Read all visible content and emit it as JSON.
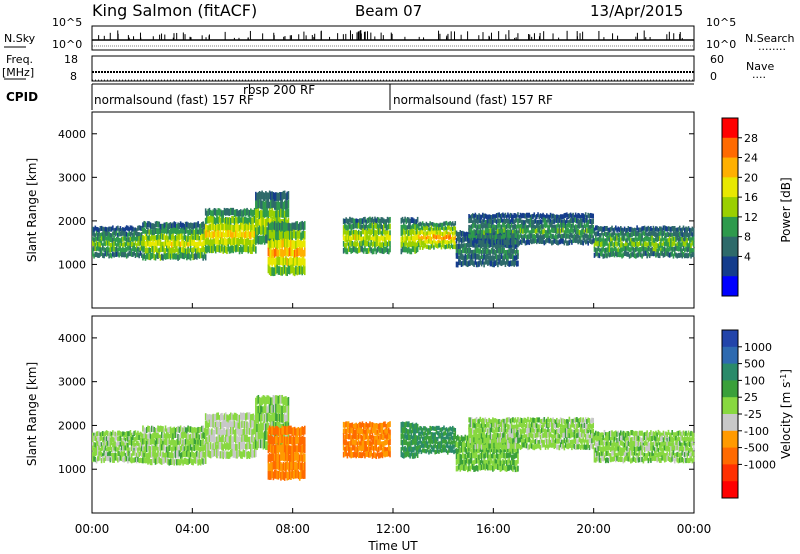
{
  "header": {
    "station": "King Salmon (fitACF)",
    "beam": "Beam 07",
    "date": "13/Apr/2015"
  },
  "noise_panel": {
    "left_label": "N.Sky",
    "right_label": "N.Search",
    "right_dots": "........",
    "left_ticks": [
      "10^5",
      "10^0"
    ],
    "right_ticks": [
      "10^5",
      "10^0"
    ]
  },
  "freq_panel": {
    "left_label_1": "Freq.",
    "left_label_2": "[MHz]",
    "left_ticks": [
      "18",
      "8"
    ],
    "right_ticks": [
      "60",
      "0"
    ],
    "right_label": "Nave",
    "right_dots": "....",
    "nave_value": 0
  },
  "cpid": {
    "label": "CPID",
    "segments": [
      {
        "name": "normalsound (fast) 157 RF",
        "start_hour": 0,
        "end_hour": 12
      },
      {
        "name": "rbsp 200 RF",
        "start_hour": 5.7,
        "end_hour": 6.0
      },
      {
        "name": "normalsound (fast) 157 RF",
        "start_hour": 12,
        "end_hour": 24
      }
    ]
  },
  "colorbars": {
    "power": {
      "label": "Power [dB]",
      "ticks": [
        "28",
        "24",
        "20",
        "16",
        "12",
        "8",
        "4"
      ],
      "colors": [
        "#ff0000",
        "#ff6a00",
        "#ffb000",
        "#e8e800",
        "#9ad000",
        "#2e9a4c",
        "#2e6a6a",
        "#143c8c",
        "#0000ff"
      ]
    },
    "velocity": {
      "label": "Velocity [m s",
      "label_sup": "-1",
      "label_end": "]",
      "ticks": [
        "1000",
        "500",
        "100",
        "25",
        "-25",
        "-100",
        "-500",
        "-1000"
      ],
      "colors": [
        "#2244aa",
        "#2e6ab0",
        "#2a8a6a",
        "#3aa03a",
        "#88d840",
        "#c8c8c8",
        "#ff9a00",
        "#ff6a00",
        "#ff3000",
        "#ff0000"
      ]
    }
  },
  "chart_data": {
    "type": "heatmap",
    "panels": [
      {
        "name": "power",
        "ylabel": "Slant Range [km]",
        "ylim": [
          0,
          4500
        ],
        "yticks": [
          1000,
          2000,
          3000,
          4000
        ]
      },
      {
        "name": "velocity",
        "ylabel": "Slant Range [km]",
        "ylim": [
          0,
          4500
        ],
        "yticks": [
          1000,
          2000,
          3000,
          4000
        ]
      }
    ],
    "xlabel": "Time UT",
    "xlim": [
      0,
      24
    ],
    "xticks": [
      "00:00",
      "04:00",
      "08:00",
      "12:00",
      "16:00",
      "20:00",
      "00:00"
    ],
    "echo_bands": [
      {
        "t_start": 0.0,
        "t_end": 2.0,
        "r_low": 1200,
        "r_high": 1900,
        "power_db": 12,
        "velocity": 0
      },
      {
        "t_start": 2.0,
        "t_end": 4.5,
        "r_low": 1150,
        "r_high": 2000,
        "power_db": 16,
        "velocity": 0
      },
      {
        "t_start": 4.5,
        "t_end": 6.5,
        "r_low": 1300,
        "r_high": 2300,
        "power_db": 18,
        "velocity": -25
      },
      {
        "t_start": 6.5,
        "t_end": 7.8,
        "r_low": 1500,
        "r_high": 2700,
        "power_db": 14,
        "velocity": 0
      },
      {
        "t_start": 7.0,
        "t_end": 8.5,
        "r_low": 800,
        "r_high": 2000,
        "power_db": 20,
        "velocity": -500
      },
      {
        "t_start": 10.0,
        "t_end": 11.9,
        "r_low": 1300,
        "r_high": 2100,
        "power_db": 16,
        "velocity": -500
      },
      {
        "t_start": 12.3,
        "t_end": 13.0,
        "r_low": 1300,
        "r_high": 2100,
        "power_db": 16,
        "velocity": 100
      },
      {
        "t_start": 13.0,
        "t_end": 14.5,
        "r_low": 1400,
        "r_high": 2000,
        "power_db": 20,
        "velocity": 100
      },
      {
        "t_start": 14.5,
        "t_end": 17.0,
        "r_low": 1000,
        "r_high": 1800,
        "power_db": 8,
        "velocity": 25
      },
      {
        "t_start": 15.0,
        "t_end": 20.0,
        "r_low": 1500,
        "r_high": 2200,
        "power_db": 10,
        "velocity": 0
      },
      {
        "t_start": 20.0,
        "t_end": 24.0,
        "r_low": 1200,
        "r_high": 1900,
        "power_db": 12,
        "velocity": 0
      }
    ]
  }
}
